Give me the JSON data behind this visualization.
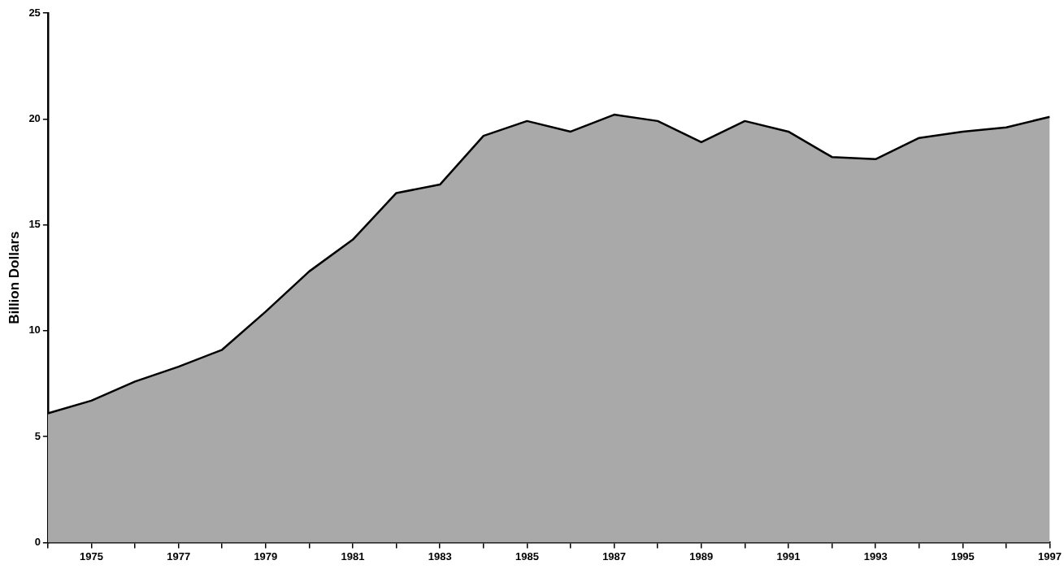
{
  "chart_data": {
    "type": "area",
    "ylabel": "Billion Dollars",
    "x": [
      1974,
      1975,
      1976,
      1977,
      1978,
      1979,
      1980,
      1981,
      1982,
      1983,
      1984,
      1985,
      1986,
      1987,
      1988,
      1989,
      1990,
      1991,
      1992,
      1993,
      1994,
      1995,
      1996,
      1997
    ],
    "series": [
      {
        "color": "#a9a9a9",
        "values": [
          6.1,
          6.7,
          7.6,
          8.3,
          9.1,
          10.9,
          12.8,
          14.3,
          16.5,
          16.9,
          19.2,
          19.9,
          19.4,
          20.2,
          19.9,
          18.9,
          19.9,
          19.4,
          18.2,
          18.1,
          19.1,
          19.4,
          19.6,
          20.1
        ]
      }
    ],
    "xlim": [
      1974,
      1997
    ],
    "xticks": [
      {
        "value": 1974,
        "label": null
      },
      1975,
      {
        "value": 1976,
        "label": null
      },
      1977,
      {
        "value": 1978,
        "label": null
      },
      1979,
      {
        "value": 1980,
        "label": null
      },
      1981,
      {
        "value": 1982,
        "label": null
      },
      1983,
      {
        "value": 1984,
        "label": null
      },
      1985,
      {
        "value": 1986,
        "label": null
      },
      1987,
      {
        "value": 1988,
        "label": null
      },
      1989,
      {
        "value": 1990,
        "label": null
      },
      1991,
      {
        "value": 1992,
        "label": null
      },
      1993,
      {
        "value": 1994,
        "label": null
      },
      1995,
      {
        "value": 1996,
        "label": null
      },
      1997
    ],
    "ylim": [
      0,
      25
    ],
    "yticks": [
      0,
      5,
      10,
      15,
      20,
      25
    ],
    "grid": false,
    "legend": false
  }
}
